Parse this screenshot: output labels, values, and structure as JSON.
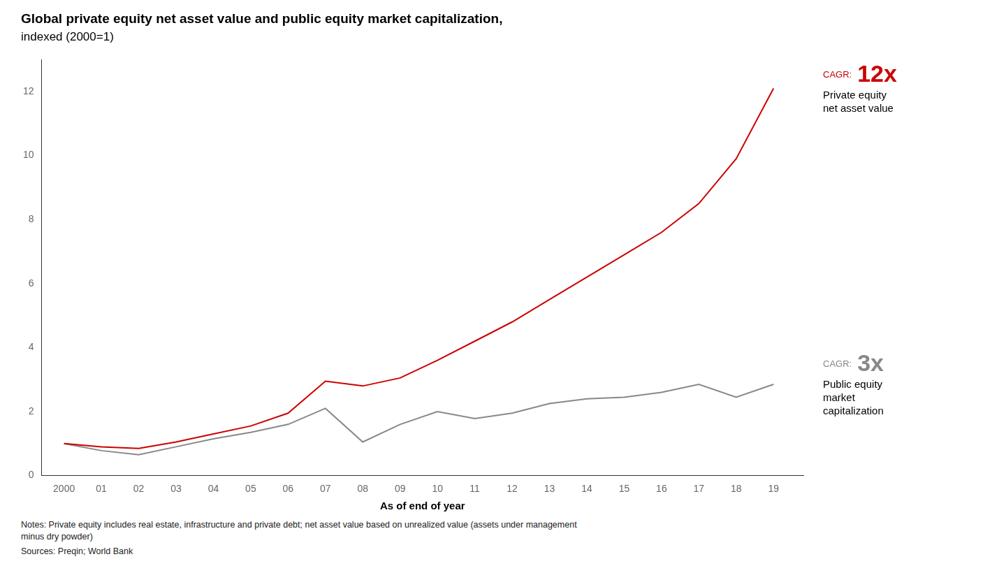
{
  "chart_data": {
    "type": "line",
    "title": "Global private equity net asset value and public equity market capitalization,",
    "subtitle": "indexed (2000=1)",
    "x_label": "As of end of year",
    "x": [
      2000,
      2001,
      2002,
      2003,
      2004,
      2005,
      2006,
      2007,
      2008,
      2009,
      2010,
      2011,
      2012,
      2013,
      2014,
      2015,
      2016,
      2017,
      2018,
      2019
    ],
    "series": [
      {
        "color": "#cc0000",
        "values": [
          1.0,
          0.9,
          0.85,
          1.05,
          1.3,
          1.55,
          1.95,
          2.95,
          2.8,
          3.05,
          3.6,
          4.2,
          4.8,
          5.5,
          6.2,
          6.9,
          7.6,
          8.5,
          9.9,
          12.1
        ]
      },
      {
        "color": "#888888",
        "values": [
          1.0,
          0.78,
          0.65,
          0.9,
          1.15,
          1.35,
          1.6,
          2.1,
          1.05,
          1.6,
          2.0,
          1.78,
          1.95,
          2.25,
          2.4,
          2.45,
          2.6,
          2.85,
          2.45,
          2.85
        ]
      }
    ],
    "annotations": [
      [
        "CAGR:",
        "12x",
        "Private equity",
        "net asset value"
      ],
      [
        "CAGR:",
        "3x",
        "Public equity",
        "market",
        "capitalization"
      ]
    ],
    "xlim": [
      1999.4,
      2019.8
    ],
    "xticks": [
      2000,
      {
        "value": 2001,
        "label": "01"
      },
      {
        "value": 2002,
        "label": "02"
      },
      {
        "value": 2003,
        "label": "03"
      },
      {
        "value": 2004,
        "label": "04"
      },
      {
        "value": 2005,
        "label": "05"
      },
      {
        "value": 2006,
        "label": "06"
      },
      {
        "value": 2007,
        "label": "07"
      },
      {
        "value": 2008,
        "label": "08"
      },
      {
        "value": 2009,
        "label": "09"
      },
      {
        "value": 2010,
        "label": "10"
      },
      {
        "value": 2011,
        "label": "11"
      },
      {
        "value": 2012,
        "label": "12"
      },
      {
        "value": 2013,
        "label": "13"
      },
      {
        "value": 2014,
        "label": "14"
      },
      {
        "value": 2015,
        "label": "15"
      },
      {
        "value": 2016,
        "label": "16"
      },
      {
        "value": 2017,
        "label": "17"
      },
      {
        "value": 2018,
        "label": "18"
      },
      {
        "value": 2019,
        "label": "19"
      }
    ],
    "ylim": [
      0,
      13
    ],
    "yticks": [
      0,
      2,
      4,
      6,
      8,
      10,
      12
    ],
    "grid": false,
    "notes": "Notes: Private equity includes real estate, infrastructure and private debt; net asset value based on unrealized value (assets under management\nminus dry powder)",
    "sources": "Sources: Preqin; World Bank"
  }
}
